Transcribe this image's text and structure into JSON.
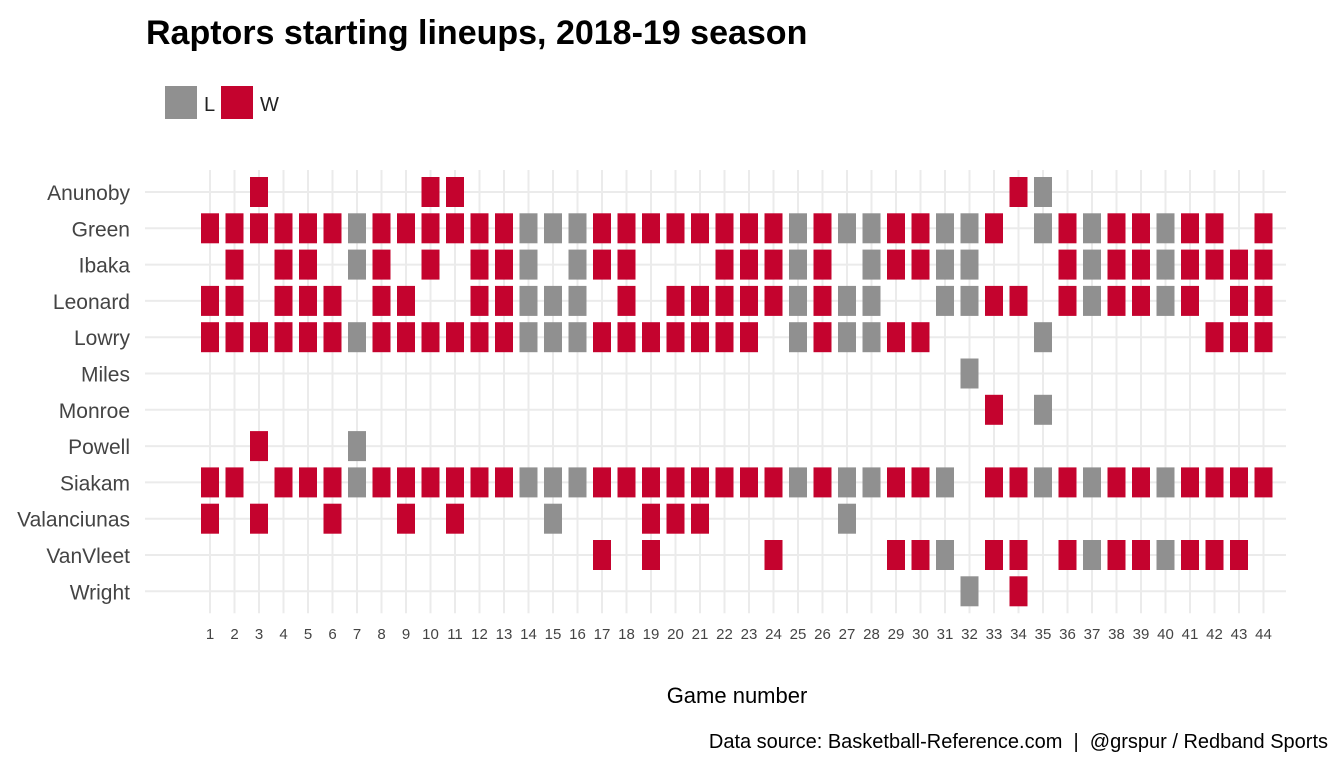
{
  "chart_data": {
    "type": "heatmap",
    "title": "Raptors starting lineups, 2018-19 season",
    "xlabel": "Game number",
    "ylabel": "",
    "caption": "Data source: Basketball-Reference.com  |  @grspur / Redband Sports",
    "legend": {
      "position": "top-left",
      "entries": [
        {
          "key": "L",
          "label": "L",
          "color": "#909090"
        },
        {
          "key": "W",
          "label": "W",
          "color": "#c4032e"
        }
      ]
    },
    "x": [
      1,
      2,
      3,
      4,
      5,
      6,
      7,
      8,
      9,
      10,
      11,
      12,
      13,
      14,
      15,
      16,
      17,
      18,
      19,
      20,
      21,
      22,
      23,
      24,
      25,
      26,
      27,
      28,
      29,
      30,
      31,
      32,
      33,
      34,
      35,
      36,
      37,
      38,
      39,
      40,
      41,
      42,
      43,
      44
    ],
    "players": [
      "Anunoby",
      "Green",
      "Ibaka",
      "Leonard",
      "Lowry",
      "Miles",
      "Monroe",
      "Powell",
      "Siakam",
      "Valanciunas",
      "VanVleet",
      "Wright"
    ],
    "results": [
      "W",
      "W",
      "W",
      "W",
      "W",
      "W",
      "L",
      "W",
      "W",
      "W",
      "W",
      "W",
      "W",
      "L",
      "L",
      "L",
      "W",
      "W",
      "W",
      "W",
      "W",
      "W",
      "W",
      "W",
      "L",
      "W",
      "L",
      "L",
      "W",
      "W",
      "L",
      "L",
      "W",
      "W",
      "L",
      "W",
      "L",
      "W",
      "W",
      "L",
      "W",
      "W",
      "W",
      "W"
    ],
    "starters": {
      "Anunoby": [
        3,
        10,
        11,
        34,
        35
      ],
      "Green": [
        1,
        2,
        3,
        4,
        5,
        6,
        7,
        8,
        9,
        10,
        11,
        12,
        13,
        14,
        15,
        16,
        17,
        18,
        19,
        20,
        21,
        22,
        23,
        24,
        25,
        26,
        27,
        28,
        29,
        30,
        31,
        32,
        33,
        35,
        36,
        37,
        38,
        39,
        40,
        41,
        42,
        44
      ],
      "Ibaka": [
        2,
        4,
        5,
        7,
        8,
        10,
        12,
        13,
        14,
        16,
        17,
        18,
        22,
        23,
        24,
        25,
        26,
        28,
        29,
        30,
        31,
        32,
        36,
        37,
        38,
        39,
        40,
        41,
        42,
        43,
        44
      ],
      "Leonard": [
        1,
        2,
        4,
        5,
        6,
        8,
        9,
        12,
        13,
        14,
        15,
        16,
        18,
        20,
        21,
        22,
        23,
        24,
        25,
        26,
        27,
        28,
        31,
        32,
        33,
        34,
        36,
        37,
        38,
        39,
        40,
        41,
        43,
        44
      ],
      "Lowry": [
        1,
        2,
        3,
        4,
        5,
        6,
        7,
        8,
        9,
        10,
        11,
        12,
        13,
        14,
        15,
        16,
        17,
        18,
        19,
        20,
        21,
        22,
        23,
        25,
        26,
        27,
        28,
        29,
        30,
        35,
        42,
        43,
        44
      ],
      "Miles": [
        32
      ],
      "Monroe": [
        33,
        35
      ],
      "Powell": [
        3,
        7
      ],
      "Siakam": [
        1,
        2,
        4,
        5,
        6,
        7,
        8,
        9,
        10,
        11,
        12,
        13,
        14,
        15,
        16,
        17,
        18,
        19,
        20,
        21,
        22,
        23,
        24,
        25,
        26,
        27,
        28,
        29,
        30,
        31,
        33,
        34,
        35,
        36,
        37,
        38,
        39,
        40,
        41,
        42,
        43,
        44
      ],
      "Valanciunas": [
        1,
        3,
        6,
        9,
        11,
        15,
        19,
        20,
        21,
        27
      ],
      "VanVleet": [
        17,
        19,
        24,
        29,
        30,
        31,
        33,
        34,
        36,
        37,
        38,
        39,
        40,
        41,
        42,
        43
      ],
      "Wright": [
        32,
        34
      ]
    }
  }
}
